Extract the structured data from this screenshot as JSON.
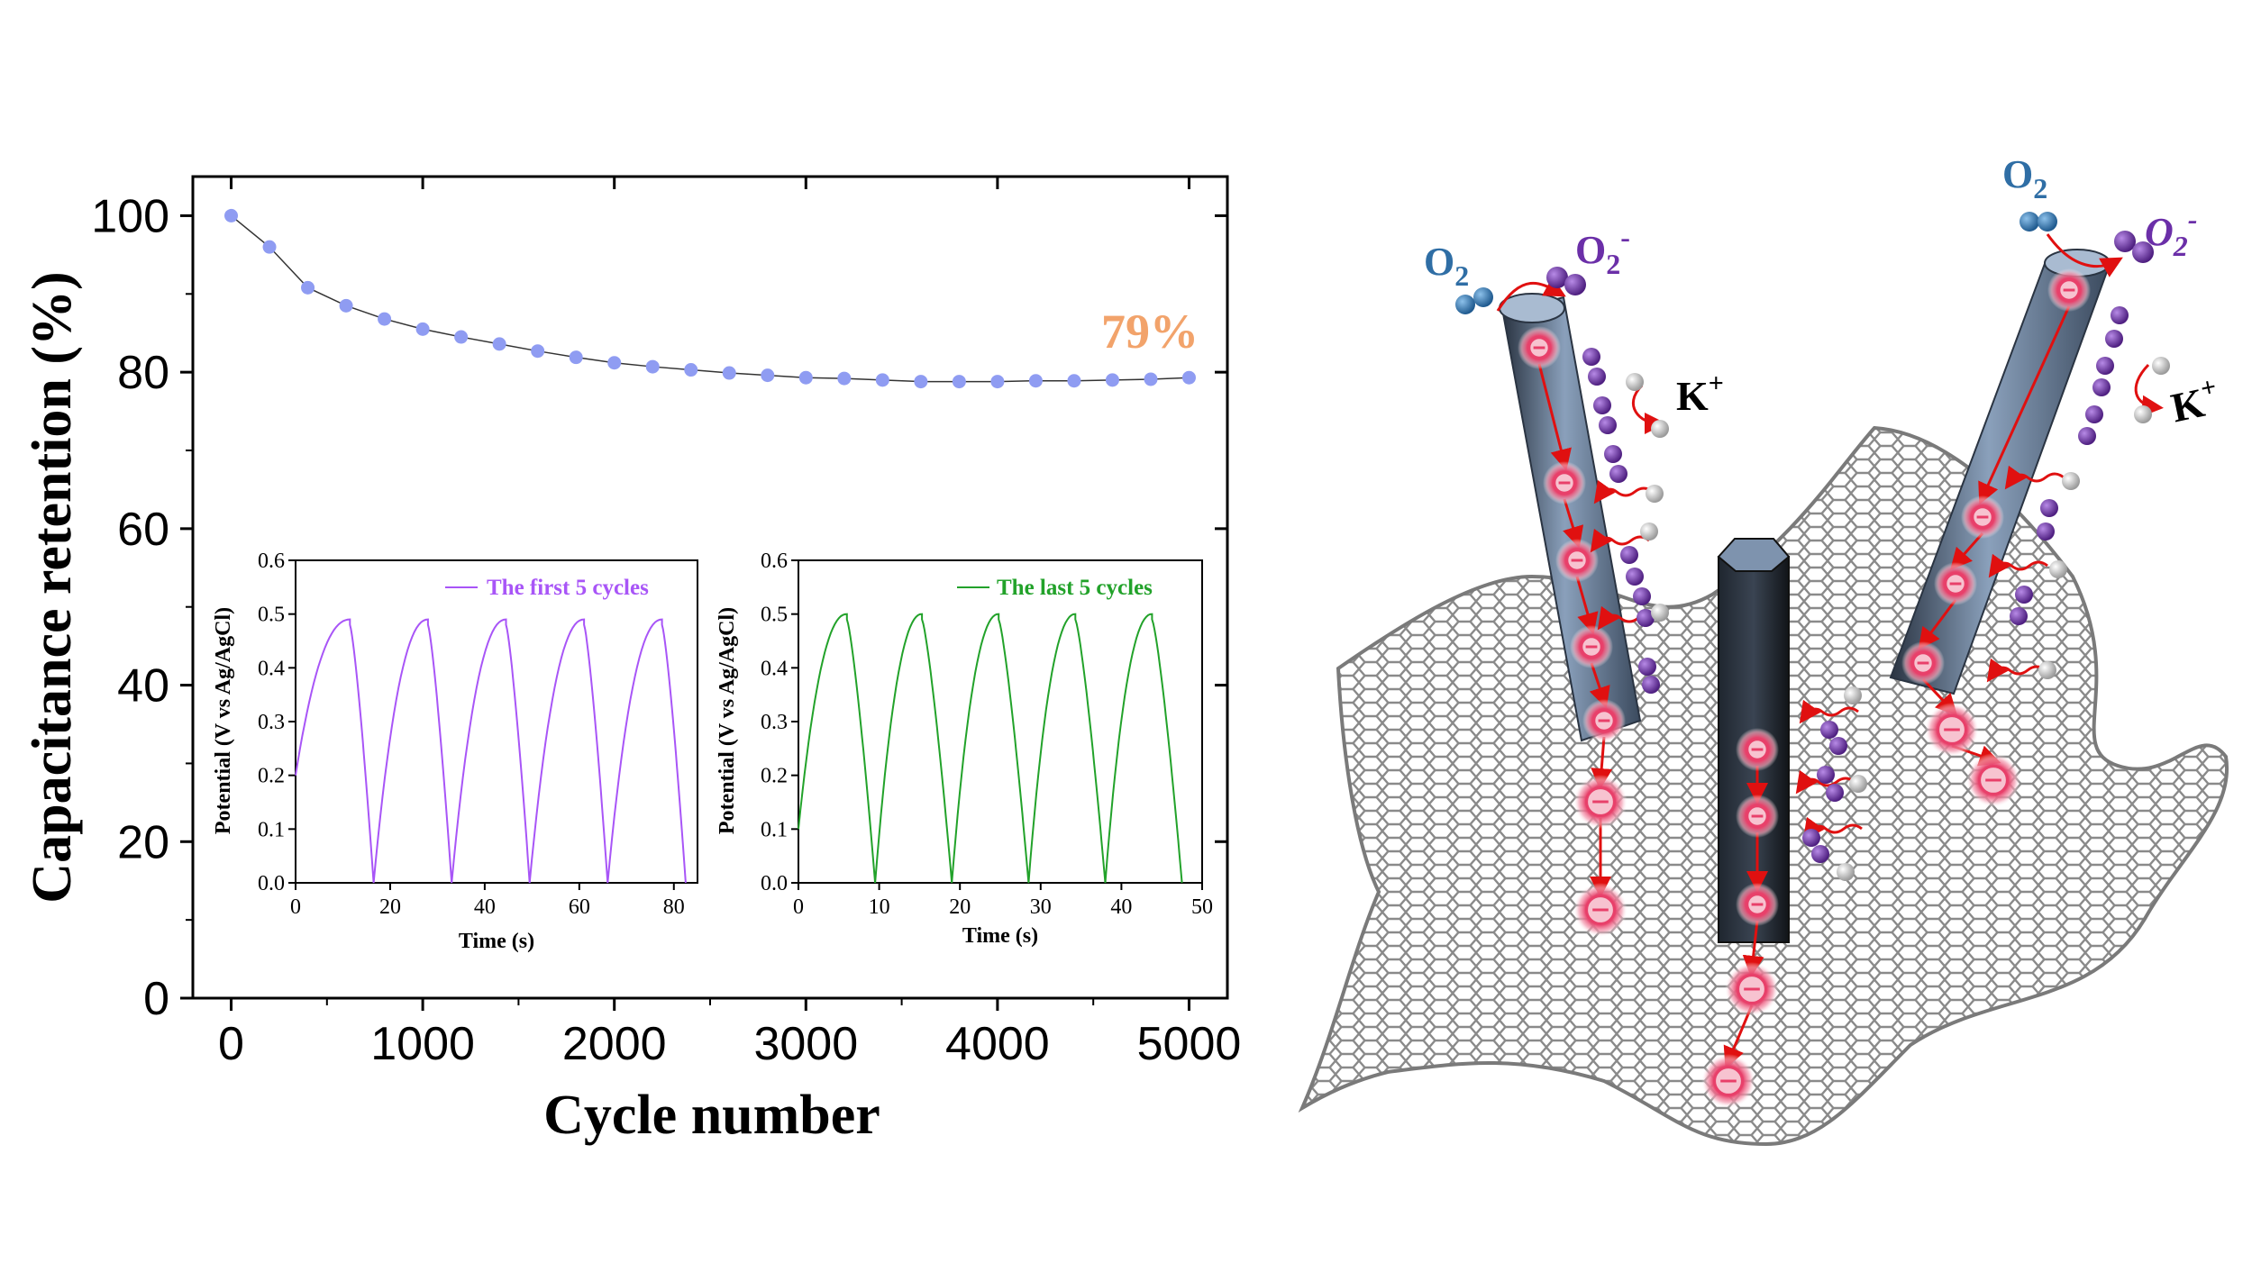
{
  "chart_data": [
    {
      "type": "line",
      "xlabel": "Cycle number",
      "ylabel": "Capacitance retention (%)",
      "xlim": [
        -200,
        5200
      ],
      "ylim": [
        0,
        105
      ],
      "xticks": [
        0,
        1000,
        2000,
        3000,
        4000,
        5000
      ],
      "yticks": [
        0,
        20,
        40,
        60,
        80,
        100
      ],
      "annotation": "79%",
      "colors": {
        "series": "#8f9cf2",
        "line": "#333333",
        "annotation": "#f2a36b"
      },
      "series": [
        {
          "x": [
            0,
            200,
            400,
            600,
            800,
            1000,
            1200,
            1400,
            1600,
            1800,
            2000,
            2200,
            2400,
            2600,
            2800,
            3000,
            3200,
            3400,
            3600,
            3800,
            4000,
            4200,
            4400,
            4600,
            4800,
            5000
          ],
          "values": [
            100,
            96,
            90.8,
            88.5,
            86.8,
            85.5,
            84.5,
            83.6,
            82.7,
            81.9,
            81.2,
            80.7,
            80.3,
            79.9,
            79.6,
            79.3,
            79.2,
            79.0,
            78.8,
            78.8,
            78.8,
            78.9,
            78.9,
            79.0,
            79.1,
            79.3
          ]
        }
      ]
    },
    {
      "type": "line",
      "xlabel": "Time (s)",
      "ylabel": "Potential (V vs Ag/AgCl)",
      "xlim": [
        0,
        85
      ],
      "ylim": [
        0,
        0.6
      ],
      "xticks": [
        0,
        20,
        40,
        60,
        80
      ],
      "yticks": [
        0.0,
        0.1,
        0.2,
        0.3,
        0.4,
        0.5,
        0.6
      ],
      "colors": {
        "series": "#a855f7"
      },
      "series": [
        {
          "name": "The first 5 cycles",
          "cycles": [
            {
              "start": 0,
              "peak_time": 11.5,
              "end": 16.5
            },
            {
              "start": 16.5,
              "peak_time": 28.0,
              "end": 33.0
            },
            {
              "start": 33.0,
              "peak_time": 44.5,
              "end": 49.5
            },
            {
              "start": 49.5,
              "peak_time": 61.0,
              "end": 66.0
            },
            {
              "start": 66.0,
              "peak_time": 77.5,
              "end": 82.5
            }
          ],
          "charge_start_value": 0.2,
          "peak_value": 0.49,
          "end_value": 0.0
        }
      ]
    },
    {
      "type": "line",
      "xlabel": "Time (s)",
      "ylabel": "Potential (V vs Ag/AgCl)",
      "xlim": [
        0,
        50
      ],
      "ylim": [
        0,
        0.6
      ],
      "xticks": [
        0,
        10,
        20,
        30,
        40,
        50
      ],
      "yticks": [
        0.0,
        0.1,
        0.2,
        0.3,
        0.4,
        0.5,
        0.6
      ],
      "colors": {
        "series": "#22a22a"
      },
      "series": [
        {
          "name": "The last 5 cycles",
          "cycles": [
            {
              "start": 0,
              "peak_time": 6.0,
              "end": 9.5
            },
            {
              "start": 9.5,
              "peak_time": 15.3,
              "end": 19.0
            },
            {
              "start": 19.0,
              "peak_time": 24.8,
              "end": 28.5
            },
            {
              "start": 28.5,
              "peak_time": 34.3,
              "end": 38.0
            },
            {
              "start": 38.0,
              "peak_time": 43.8,
              "end": 47.5
            }
          ],
          "charge_start_value": 0.1,
          "peak_value": 0.5,
          "end_value": 0.0
        }
      ]
    }
  ],
  "illustration": {
    "labels": {
      "o2_left": "O",
      "o2_left_sub": "2",
      "o2m_left": "O",
      "o2m_left_sub": "2",
      "o2m_left_sup": "-",
      "k_left": "K",
      "k_left_sup": "+",
      "o2_right": "O",
      "o2_right_sub": "2",
      "o2m_right": "O",
      "o2m_right_sub": "2",
      "o2m_right_sup": "-",
      "k_right": "K",
      "k_right_sup": "+",
      "electron_symbol": "⊖"
    },
    "colors": {
      "rod": "#6f87a3",
      "rod_dark": "#2a3442",
      "graphene": "#8a8a8a",
      "o2": "#2f6ea5",
      "superoxide": "#6b2fa8",
      "potassium": "#f0f0f0",
      "arrow": "#e01010",
      "electron": "#e8406a"
    }
  }
}
